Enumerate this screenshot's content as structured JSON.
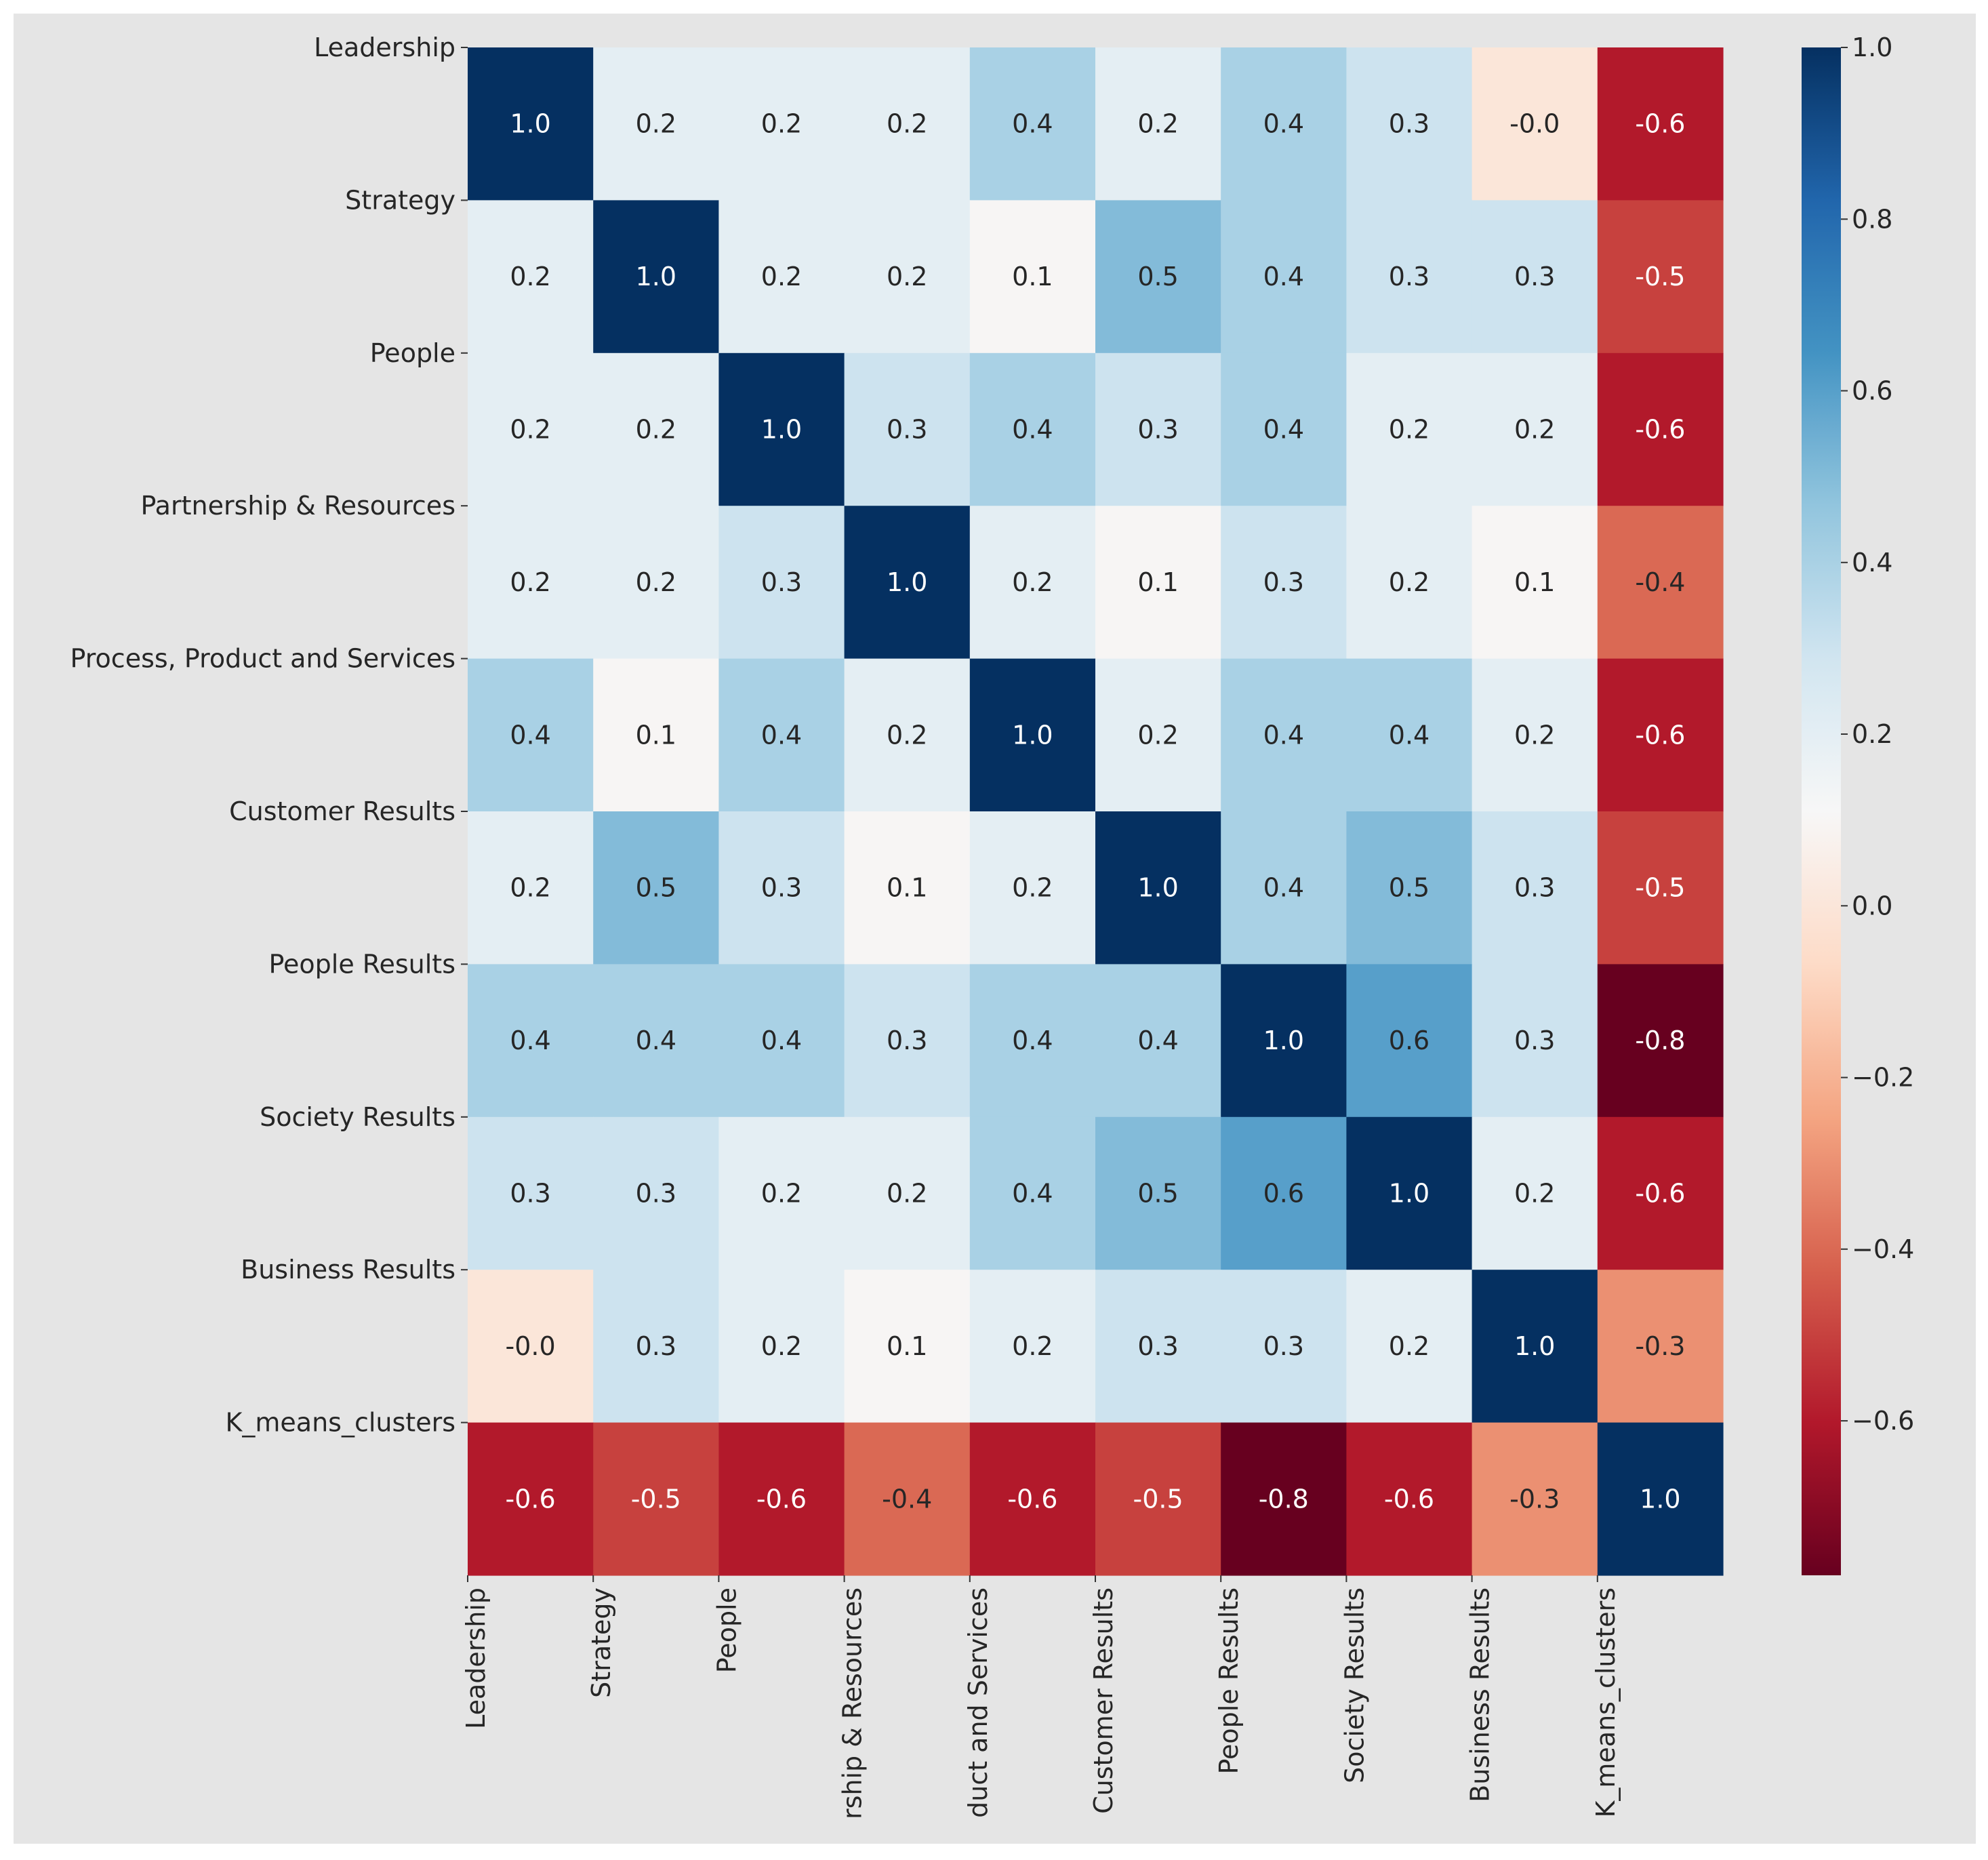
{
  "chart_data": {
    "type": "heatmap",
    "title": "",
    "xlabel": "",
    "ylabel": "",
    "x_categories": [
      "Leadership",
      "Strategy",
      "People",
      "Partnership & Resources",
      "Process, Product and Services",
      "Customer Results",
      "People Results",
      "Society Results",
      "Business Results",
      "K_means_clusters"
    ],
    "y_categories": [
      "Leadership",
      "Strategy",
      "People",
      "Partnership & Resources",
      "Process, Product and Services",
      "Customer Results",
      "People Results",
      "Society Results",
      "Business Results",
      "K_means_clusters"
    ],
    "x_tick_labels_visible": [
      "Leadership",
      "Strategy",
      "People",
      "rship & Resources",
      "duct and Services",
      "Customer Results",
      "People Results",
      "Society Results",
      "Business Results",
      "K_means_clusters"
    ],
    "matrix": [
      [
        1.0,
        0.2,
        0.2,
        0.2,
        0.4,
        0.2,
        0.4,
        0.3,
        -0.0,
        -0.6
      ],
      [
        0.2,
        1.0,
        0.2,
        0.2,
        0.1,
        0.5,
        0.4,
        0.3,
        0.3,
        -0.5
      ],
      [
        0.2,
        0.2,
        1.0,
        0.3,
        0.4,
        0.3,
        0.4,
        0.2,
        0.2,
        -0.6
      ],
      [
        0.2,
        0.2,
        0.3,
        1.0,
        0.2,
        0.1,
        0.3,
        0.2,
        0.1,
        -0.4
      ],
      [
        0.4,
        0.1,
        0.4,
        0.2,
        1.0,
        0.2,
        0.4,
        0.4,
        0.2,
        -0.6
      ],
      [
        0.2,
        0.5,
        0.3,
        0.1,
        0.2,
        1.0,
        0.4,
        0.5,
        0.3,
        -0.5
      ],
      [
        0.4,
        0.4,
        0.4,
        0.3,
        0.4,
        0.4,
        1.0,
        0.6,
        0.3,
        -0.8
      ],
      [
        0.3,
        0.3,
        0.2,
        0.2,
        0.4,
        0.5,
        0.6,
        1.0,
        0.2,
        -0.6
      ],
      [
        -0.0,
        0.3,
        0.2,
        0.1,
        0.2,
        0.3,
        0.3,
        0.2,
        1.0,
        -0.3
      ],
      [
        -0.6,
        -0.5,
        -0.6,
        -0.4,
        -0.6,
        -0.5,
        -0.8,
        -0.6,
        -0.3,
        1.0
      ]
    ],
    "annotations": [
      [
        "1.0",
        "0.2",
        "0.2",
        "0.2",
        "0.4",
        "0.2",
        "0.4",
        "0.3",
        "-0.0",
        "-0.6"
      ],
      [
        "0.2",
        "1.0",
        "0.2",
        "0.2",
        "0.1",
        "0.5",
        "0.4",
        "0.3",
        "0.3",
        "-0.5"
      ],
      [
        "0.2",
        "0.2",
        "1.0",
        "0.3",
        "0.4",
        "0.3",
        "0.4",
        "0.2",
        "0.2",
        "-0.6"
      ],
      [
        "0.2",
        "0.2",
        "0.3",
        "1.0",
        "0.2",
        "0.1",
        "0.3",
        "0.2",
        "0.1",
        "-0.4"
      ],
      [
        "0.4",
        "0.1",
        "0.4",
        "0.2",
        "1.0",
        "0.2",
        "0.4",
        "0.4",
        "0.2",
        "-0.6"
      ],
      [
        "0.2",
        "0.5",
        "0.3",
        "0.1",
        "0.2",
        "1.0",
        "0.4",
        "0.5",
        "0.3",
        "-0.5"
      ],
      [
        "0.4",
        "0.4",
        "0.4",
        "0.3",
        "0.4",
        "0.4",
        "1.0",
        "0.6",
        "0.3",
        "-0.8"
      ],
      [
        "0.3",
        "0.3",
        "0.2",
        "0.2",
        "0.4",
        "0.5",
        "0.6",
        "1.0",
        "0.2",
        "-0.6"
      ],
      [
        "-0.0",
        "0.3",
        "0.2",
        "0.1",
        "0.2",
        "0.3",
        "0.3",
        "0.2",
        "1.0",
        "-0.3"
      ],
      [
        "-0.6",
        "-0.5",
        "-0.6",
        "-0.4",
        "-0.6",
        "-0.5",
        "-0.8",
        "-0.6",
        "-0.3",
        "1.0"
      ]
    ],
    "colormap": "RdBu",
    "vmin": -0.78,
    "vmax": 1.0,
    "colorbar": {
      "ticks": [
        1.0,
        0.8,
        0.6,
        0.4,
        0.2,
        0.0,
        -0.2,
        -0.4,
        -0.6
      ],
      "tick_labels": [
        "1.0",
        "0.8",
        "0.6",
        "0.4",
        "0.2",
        "0.0",
        "−0.2",
        "−0.4",
        "−0.6"
      ],
      "placement": "right"
    },
    "colors": {
      "background": "#e5e5e5",
      "text_dark": "#262626",
      "text_light": "#ffffff"
    }
  }
}
